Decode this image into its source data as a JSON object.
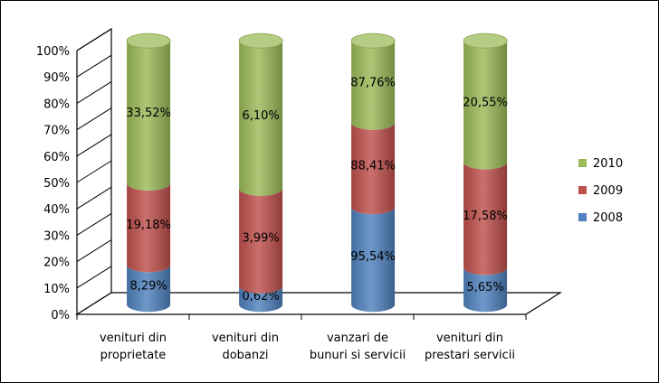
{
  "chart_data": {
    "type": "bar",
    "stacked": true,
    "shape": "cylinder",
    "categories": [
      [
        "venituri din",
        "proprietate"
      ],
      [
        "venituri din",
        "dobanzi"
      ],
      [
        "vanzari de",
        "bunuri si servicii"
      ],
      [
        "venituri din",
        "prestari servicii"
      ]
    ],
    "series": [
      {
        "name": "2008",
        "color": "#4f81bd",
        "display_share": [
          0.15,
          0.07,
          0.37,
          0.14
        ],
        "labels": [
          "8,29%",
          "0,62%",
          "95,54%",
          "5,65%"
        ]
      },
      {
        "name": "2009",
        "color": "#c0504d",
        "display_share": [
          0.31,
          0.37,
          0.32,
          0.4
        ],
        "labels": [
          "19,18%",
          "3,99%",
          "88,41%",
          "17,58%"
        ]
      },
      {
        "name": "2010",
        "color": "#9bbb59",
        "display_share": [
          0.54,
          0.56,
          0.31,
          0.46
        ],
        "labels": [
          "33,52%",
          "6,10%",
          "87,76%",
          "20,55%"
        ]
      }
    ],
    "y_ticks": [
      "0%",
      "10%",
      "20%",
      "30%",
      "40%",
      "50%",
      "60%",
      "70%",
      "80%",
      "90%",
      "100%"
    ],
    "ylim": [
      0,
      100
    ],
    "grid": false,
    "legend_position": "right",
    "legend_order": [
      "2010",
      "2009",
      "2008"
    ]
  }
}
